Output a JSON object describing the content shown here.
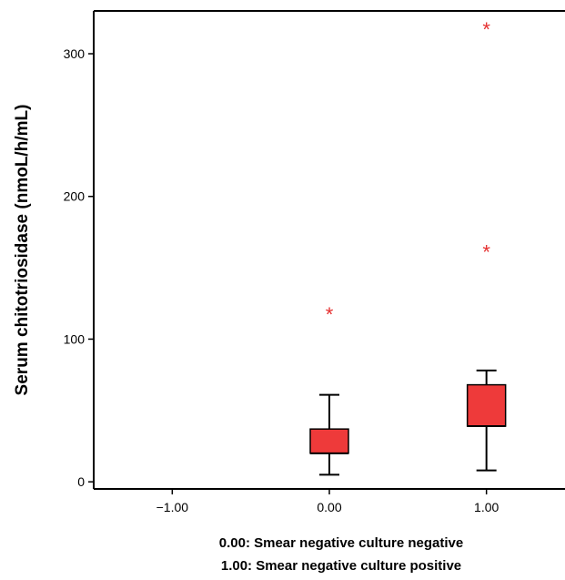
{
  "chart_data": {
    "type": "box",
    "title": "",
    "xlabel": "",
    "ylabel": "Serum chitotriosidase (nmoL/h/mL)",
    "xlim": [
      -1.5,
      1.5
    ],
    "ylim": [
      -5,
      330
    ],
    "x_ticks": [
      {
        "value": -1.0,
        "label": "−1.00"
      },
      {
        "value": 0.0,
        "label": "0.00"
      },
      {
        "value": 1.0,
        "label": "1.00"
      }
    ],
    "y_ticks": [
      {
        "value": 0,
        "label": "0"
      },
      {
        "value": 100,
        "label": "100"
      },
      {
        "value": 200,
        "label": "200"
      },
      {
        "value": 300,
        "label": "300"
      }
    ],
    "outlier_symbol": "*",
    "box_color": "#ee3a3a",
    "outlier_color": "#e53030",
    "boxes": [
      {
        "x": 0.0,
        "min": 5,
        "q1": 20,
        "median": 20,
        "q3": 37,
        "max": 61,
        "outliers": [
          118
        ]
      },
      {
        "x": 1.0,
        "min": 8,
        "q1": 39,
        "median": 39,
        "q3": 68,
        "max": 78,
        "outliers": [
          162,
          318
        ]
      }
    ],
    "legend_notes": [
      "0.00: Smear negative culture negative",
      "1.00: Smear negative culture positive"
    ]
  }
}
